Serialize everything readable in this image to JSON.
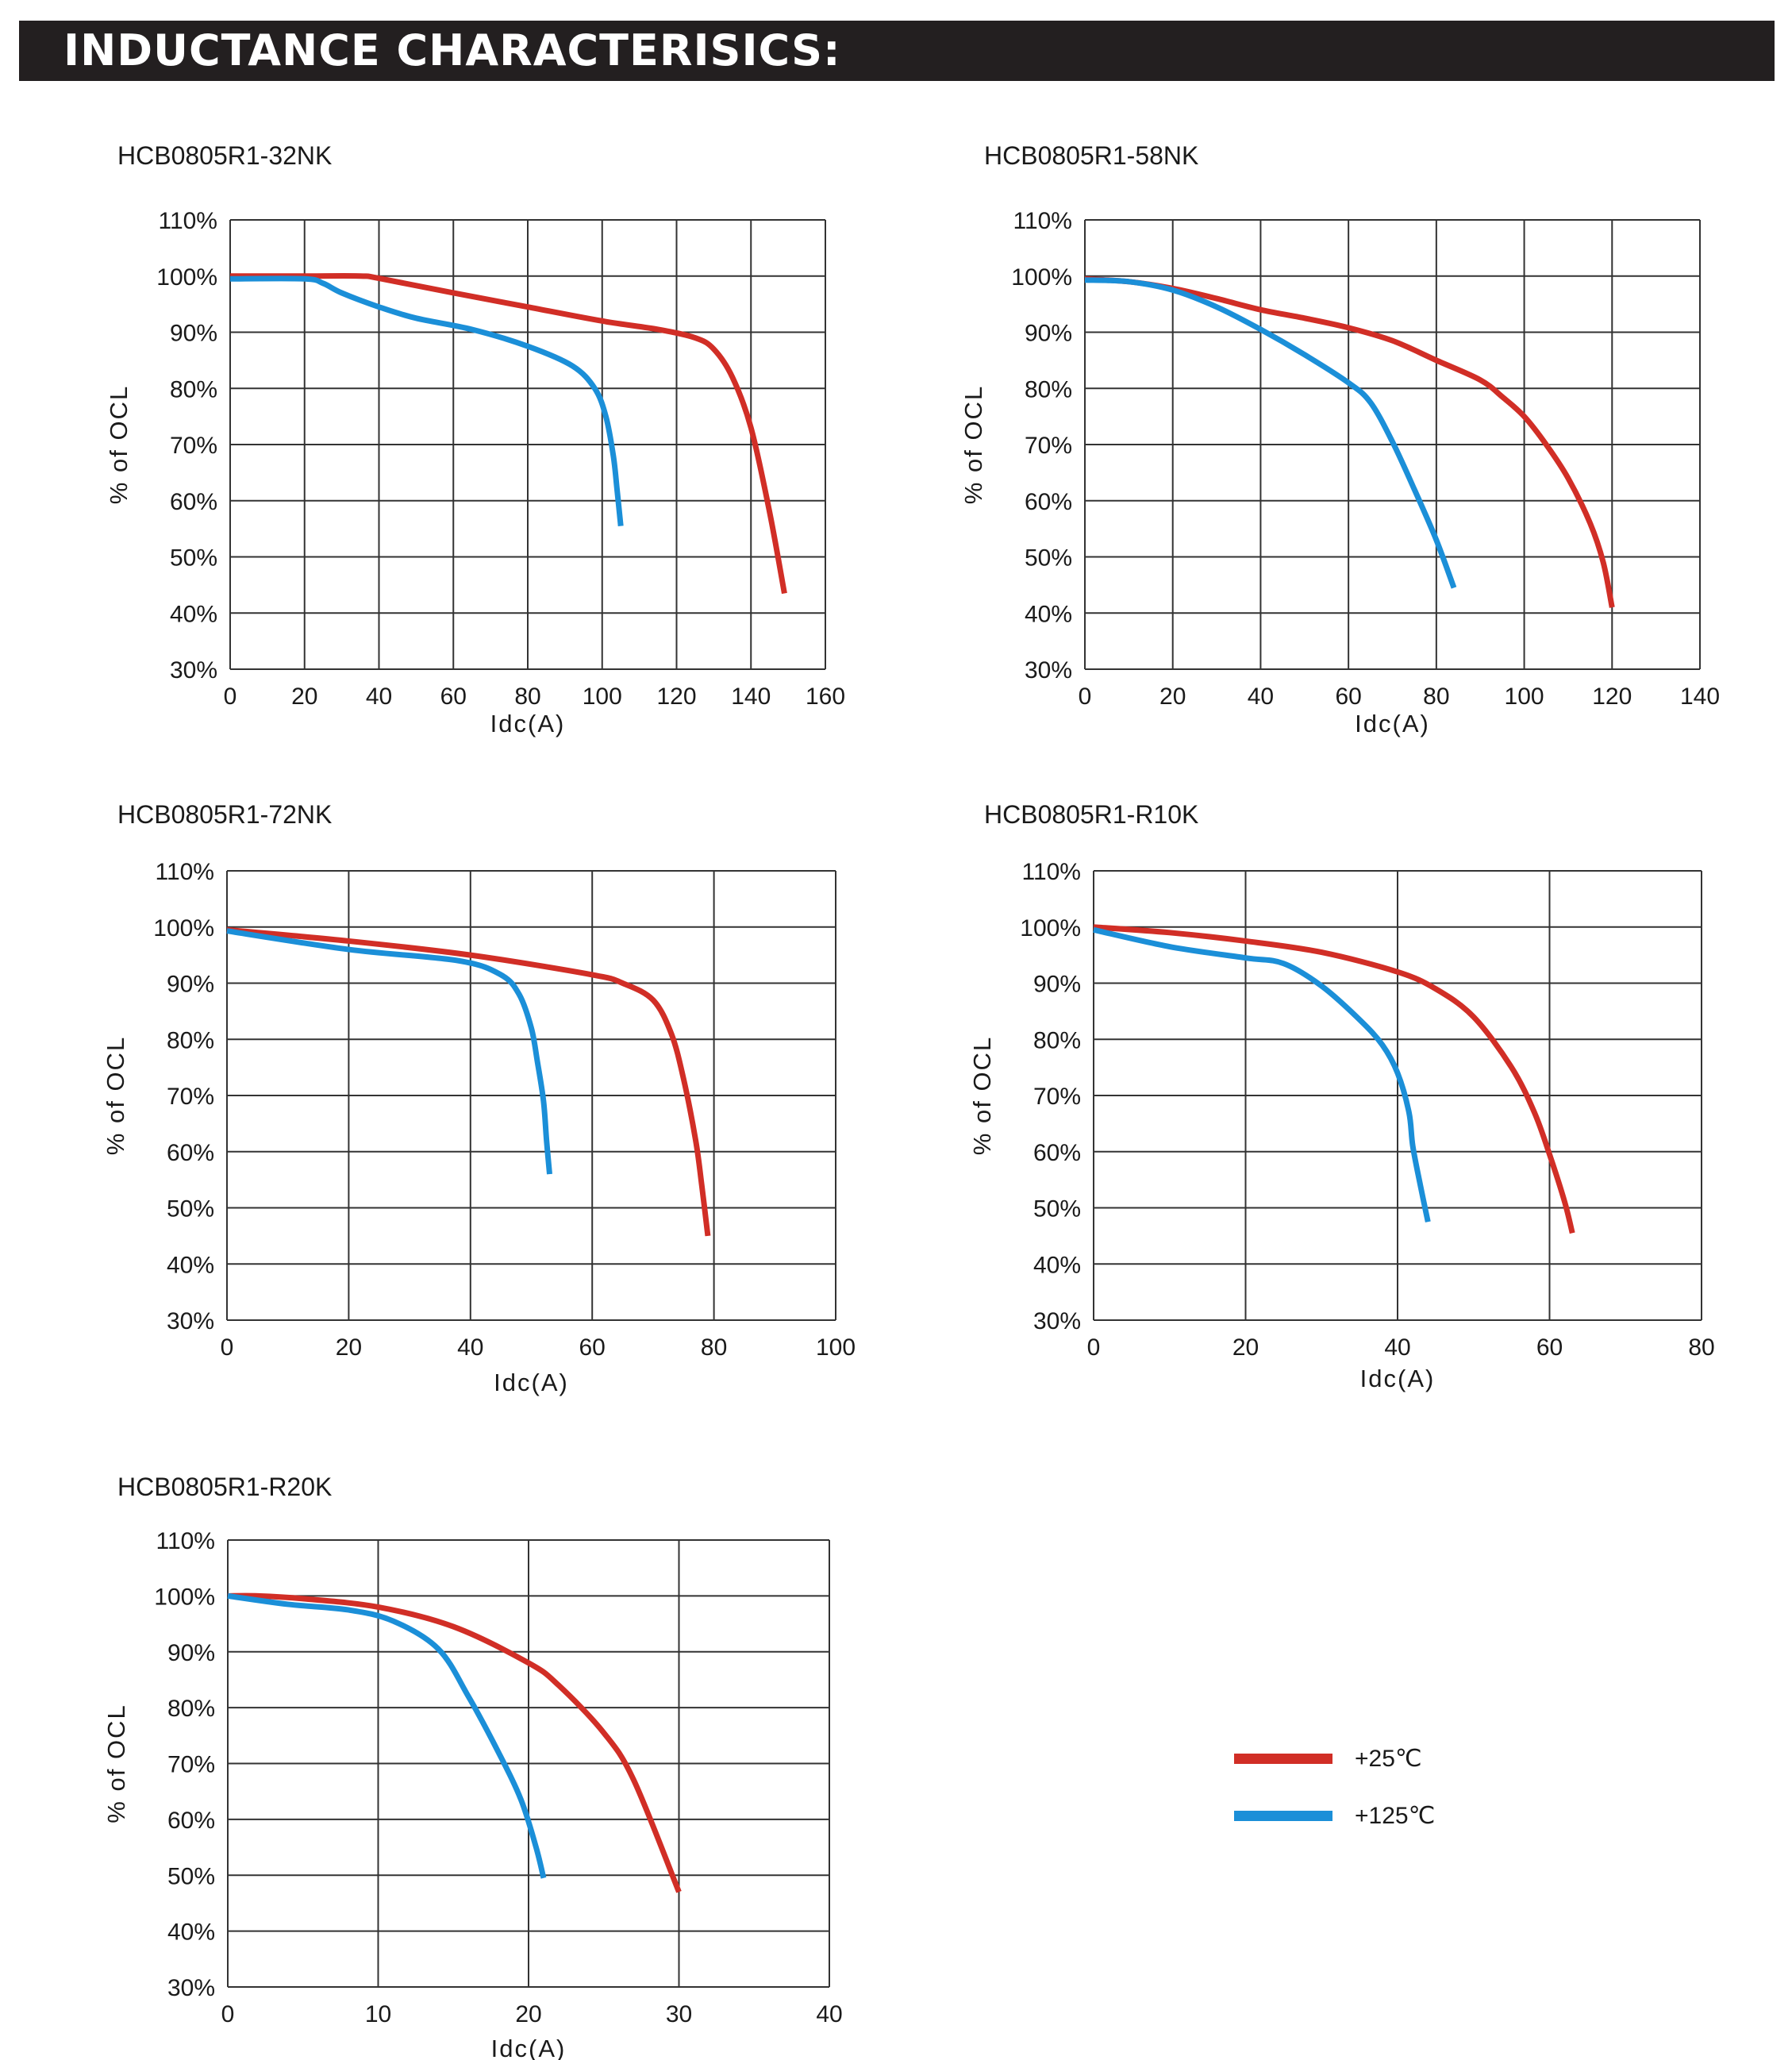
{
  "header": {
    "title": "INDUCTANCE CHARACTERISICS:"
  },
  "legend": {
    "items": [
      {
        "label": "+25℃",
        "color": "#d12e26"
      },
      {
        "label": "+125℃",
        "color": "#1b8fd8"
      }
    ]
  },
  "chart_data": [
    {
      "type": "line",
      "title": "HCB0805R1-32NK",
      "xlabel": "Idc(A)",
      "ylabel": "% of OCL",
      "xlim": [
        0,
        160
      ],
      "ylim": [
        30,
        110
      ],
      "x_ticks": [
        "0",
        "20",
        "40",
        "60",
        "80",
        "100",
        "120",
        "140",
        "160"
      ],
      "y_ticks": [
        "30%",
        "40%",
        "50%",
        "60%",
        "70%",
        "80%",
        "90%",
        "100%",
        "110%"
      ],
      "grid": true,
      "series": [
        {
          "name": "+25℃",
          "color": "#d12e26",
          "x": [
            0,
            20,
            35,
            40,
            60,
            80,
            100,
            115,
            125,
            130,
            135,
            140,
            145,
            149
          ],
          "y": [
            100,
            100,
            100,
            99.6,
            97,
            94.5,
            92,
            90.5,
            89,
            87,
            82,
            73,
            58,
            43.5
          ]
        },
        {
          "name": "+125℃",
          "color": "#1b8fd8",
          "x": [
            0,
            20,
            25,
            30,
            40,
            50,
            65,
            80,
            92,
            98,
            101,
            103,
            104,
            105
          ],
          "y": [
            99.5,
            99.5,
            98.7,
            97,
            94.5,
            92.5,
            90.5,
            87.5,
            84,
            80,
            75,
            68,
            62,
            55.5
          ]
        }
      ]
    },
    {
      "type": "line",
      "title": "HCB0805R1-58NK",
      "xlabel": "Idc(A)",
      "ylabel": "% of OCL",
      "xlim": [
        0,
        140
      ],
      "ylim": [
        30,
        110
      ],
      "x_ticks": [
        "0",
        "20",
        "40",
        "60",
        "80",
        "100",
        "120",
        "140"
      ],
      "y_ticks": [
        "30%",
        "40%",
        "50%",
        "60%",
        "70%",
        "80%",
        "90%",
        "100%",
        "110%"
      ],
      "grid": true,
      "series": [
        {
          "name": "+25℃",
          "color": "#d12e26",
          "x": [
            0,
            10,
            20,
            30,
            40,
            50,
            60,
            70,
            80,
            90,
            95,
            100,
            105,
            110,
            115,
            118,
            120
          ],
          "y": [
            99.5,
            99,
            97.8,
            96,
            94,
            92.5,
            90.8,
            88.5,
            85,
            81.5,
            78.5,
            75,
            70,
            64,
            56,
            49,
            41
          ]
        },
        {
          "name": "+125℃",
          "color": "#1b8fd8",
          "x": [
            0,
            10,
            20,
            30,
            40,
            50,
            60,
            65,
            70,
            75,
            80,
            84
          ],
          "y": [
            99.3,
            99,
            97.5,
            94.5,
            90.5,
            86,
            81,
            77.5,
            70.5,
            62,
            53,
            44.5
          ]
        }
      ]
    },
    {
      "type": "line",
      "title": "HCB0805R1-72NK",
      "xlabel": "Idc(A)",
      "ylabel": "% of OCL",
      "xlim": [
        0,
        100
      ],
      "ylim": [
        30,
        110
      ],
      "x_ticks": [
        "0",
        "20",
        "40",
        "60",
        "80",
        "100"
      ],
      "y_ticks": [
        "30%",
        "40%",
        "50%",
        "60%",
        "70%",
        "80%",
        "90%",
        "100%",
        "110%"
      ],
      "grid": true,
      "series": [
        {
          "name": "+25℃",
          "color": "#d12e26",
          "x": [
            0,
            20,
            40,
            60,
            65,
            70,
            73,
            75,
            77,
            78,
            79
          ],
          "y": [
            99.5,
            97.5,
            95,
            91.5,
            90,
            87,
            81,
            73,
            62,
            54,
            45
          ]
        },
        {
          "name": "+125℃",
          "color": "#1b8fd8",
          "x": [
            0,
            20,
            38,
            45,
            48,
            50,
            51,
            52,
            52.5,
            53
          ],
          "y": [
            99.3,
            96,
            94,
            91.5,
            88,
            82,
            76,
            69,
            62,
            56
          ]
        }
      ]
    },
    {
      "type": "line",
      "title": "HCB0805R1-R10K",
      "xlabel": "Idc(A)",
      "ylabel": "% of OCL",
      "xlim": [
        0,
        80
      ],
      "ylim": [
        30,
        110
      ],
      "x_ticks": [
        "0",
        "20",
        "40",
        "60",
        "80"
      ],
      "y_ticks": [
        "30%",
        "40%",
        "50%",
        "60%",
        "70%",
        "80%",
        "90%",
        "100%",
        "110%"
      ],
      "grid": true,
      "series": [
        {
          "name": "+25℃",
          "color": "#d12e26",
          "x": [
            0,
            10,
            20,
            30,
            40,
            45,
            50,
            55,
            58,
            60,
            62,
            63
          ],
          "y": [
            100,
            99,
            97.5,
            95.5,
            92,
            89,
            84,
            75,
            67,
            59.5,
            51,
            45.5
          ]
        },
        {
          "name": "+125℃",
          "color": "#1b8fd8",
          "x": [
            0,
            10,
            20,
            25,
            30,
            35,
            38,
            40,
            41.5,
            42,
            43,
            44
          ],
          "y": [
            99.5,
            96.5,
            94.5,
            93.5,
            89.5,
            83.5,
            79,
            74,
            67,
            61,
            54,
            47.5
          ]
        }
      ]
    },
    {
      "type": "line",
      "title": "HCB0805R1-R20K",
      "xlabel": "Idc(A)",
      "ylabel": "% of OCL",
      "xlim": [
        0,
        40
      ],
      "ylim": [
        30,
        110
      ],
      "x_ticks": [
        "0",
        "10",
        "20",
        "30",
        "40"
      ],
      "y_ticks": [
        "30%",
        "40%",
        "50%",
        "60%",
        "70%",
        "80%",
        "90%",
        "100%",
        "110%"
      ],
      "grid": true,
      "series": [
        {
          "name": "+25℃",
          "color": "#d12e26",
          "x": [
            0,
            2,
            5,
            10,
            15,
            20,
            22,
            25,
            27,
            30
          ],
          "y": [
            100,
            100,
            99.5,
            98,
            94.5,
            88,
            84,
            75.5,
            67,
            47
          ]
        },
        {
          "name": "+125℃",
          "color": "#1b8fd8",
          "x": [
            0,
            4,
            8,
            11,
            14,
            16,
            18,
            19.5,
            20.5,
            21
          ],
          "y": [
            100,
            98.5,
            97.5,
            95.5,
            90.5,
            82,
            72,
            63.5,
            55,
            49.5
          ]
        }
      ]
    }
  ]
}
